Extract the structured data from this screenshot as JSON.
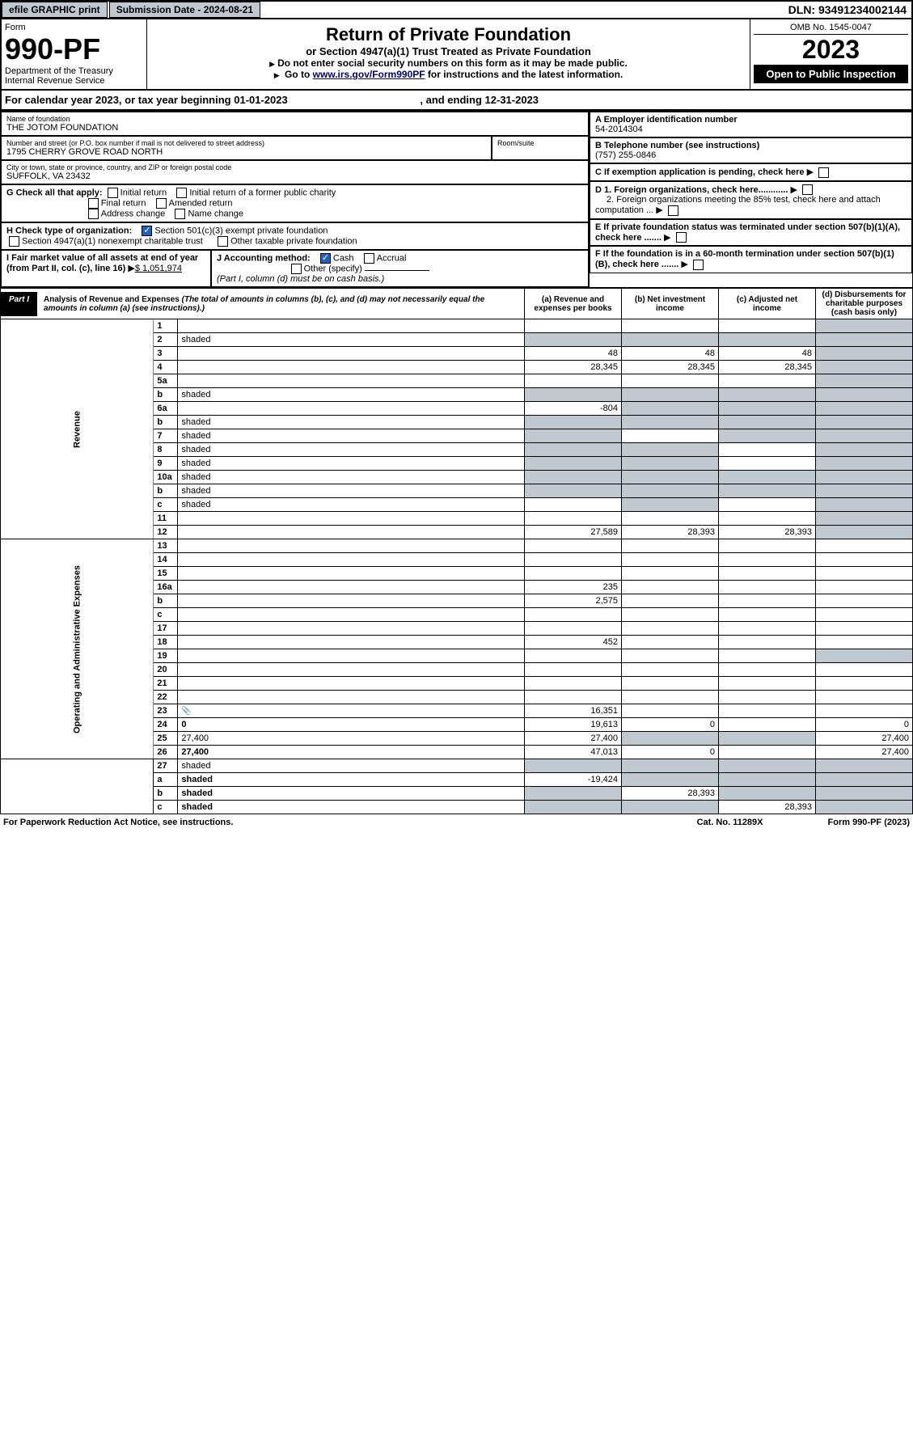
{
  "topbar": {
    "efile": "efile GRAPHIC print",
    "submission_label": "Submission Date - 2024-08-21",
    "dln": "DLN: 93491234002144"
  },
  "header": {
    "form_word": "Form",
    "form_no": "990-PF",
    "dept": "Department of the Treasury",
    "irs": "Internal Revenue Service",
    "title": "Return of Private Foundation",
    "subtitle": "or Section 4947(a)(1) Trust Treated as Private Foundation",
    "instr1": "Do not enter social security numbers on this form as it may be made public.",
    "instr2a": "Go to ",
    "instr2b": "www.irs.gov/Form990PF",
    "instr2c": " for instructions and the latest information.",
    "omb": "OMB No. 1545-0047",
    "year": "2023",
    "open": "Open to Public Inspection"
  },
  "calyear": {
    "prefix": "For calendar year 2023, or tax year beginning ",
    "begin": "01-01-2023",
    "mid": " , and ending ",
    "end": "12-31-2023"
  },
  "entity": {
    "name_label": "Name of foundation",
    "name": "THE JOTOM FOUNDATION",
    "addr_label": "Number and street (or P.O. box number if mail is not delivered to street address)",
    "addr": "1795 CHERRY GROVE ROAD NORTH",
    "room_label": "Room/suite",
    "city_label": "City or town, state or province, country, and ZIP or foreign postal code",
    "city": "SUFFOLK, VA  23432",
    "a_label": "A Employer identification number",
    "ein": "54-2014304",
    "b_label": "B Telephone number (see instructions)",
    "phone": "(757) 255-0846",
    "c_label": "C If exemption application is pending, check here",
    "d1": "D 1. Foreign organizations, check here............",
    "d2": "2. Foreign organizations meeting the 85% test, check here and attach computation ...",
    "e_label": "E  If private foundation status was terminated under section 507(b)(1)(A), check here .......",
    "f_label": "F  If the foundation is in a 60-month termination under section 507(b)(1)(B), check here .......",
    "g_label": "G Check all that apply:",
    "g_opts": {
      "initial": "Initial return",
      "initial_former": "Initial return of a former public charity",
      "final": "Final return",
      "amended": "Amended return",
      "address": "Address change",
      "name_ch": "Name change"
    },
    "h_label": "H Check type of organization:",
    "h_opts": {
      "501c3": "Section 501(c)(3) exempt private foundation",
      "4947": "Section 4947(a)(1) nonexempt charitable trust",
      "other_tax": "Other taxable private foundation"
    },
    "i_label": "I Fair market value of all assets at end of year (from Part II, col. (c), line 16)",
    "i_value": "$  1,051,974",
    "j_label": "J Accounting method:",
    "j_cash": "Cash",
    "j_accrual": "Accrual",
    "j_other": "Other (specify)",
    "j_note": "(Part I, column (d) must be on cash basis.)"
  },
  "part1": {
    "tag": "Part I",
    "title": "Analysis of Revenue and Expenses",
    "title_note": " (The total of amounts in columns (b), (c), and (d) may not necessarily equal the amounts in column (a) (see instructions).)",
    "cols": {
      "a": "(a) Revenue and expenses per books",
      "b": "(b) Net investment income",
      "c": "(c) Adjusted net income",
      "d": "(d) Disbursements for charitable purposes (cash basis only)"
    }
  },
  "sides": {
    "revenue": "Revenue",
    "expenses": "Operating and Administrative Expenses"
  },
  "rows": [
    {
      "n": "1",
      "d": "",
      "a": "",
      "b": "",
      "c": "",
      "shade_d": true
    },
    {
      "n": "2",
      "d": "shaded",
      "a": "shaded",
      "b": "shaded",
      "c": "shaded"
    },
    {
      "n": "3",
      "d": "",
      "a": "48",
      "b": "48",
      "c": "48",
      "shade_d": true
    },
    {
      "n": "4",
      "d": "",
      "a": "28,345",
      "b": "28,345",
      "c": "28,345",
      "shade_d": true
    },
    {
      "n": "5a",
      "d": "",
      "a": "",
      "b": "",
      "c": "",
      "shade_d": true
    },
    {
      "n": "b",
      "d": "shaded",
      "a": "shaded",
      "b": "shaded",
      "c": "shaded"
    },
    {
      "n": "6a",
      "d": "",
      "a": "-804",
      "b": "shaded",
      "c": "shaded",
      "shade_d": true
    },
    {
      "n": "b",
      "d": "shaded",
      "a": "shaded",
      "b": "shaded",
      "c": "shaded"
    },
    {
      "n": "7",
      "d": "shaded",
      "a": "shaded",
      "b": "",
      "c": "shaded"
    },
    {
      "n": "8",
      "d": "shaded",
      "a": "shaded",
      "b": "shaded",
      "c": ""
    },
    {
      "n": "9",
      "d": "shaded",
      "a": "shaded",
      "b": "shaded",
      "c": ""
    },
    {
      "n": "10a",
      "d": "shaded",
      "a": "shaded",
      "b": "shaded",
      "c": "shaded"
    },
    {
      "n": "b",
      "d": "shaded",
      "a": "shaded",
      "b": "shaded",
      "c": "shaded"
    },
    {
      "n": "c",
      "d": "shaded",
      "a": "",
      "b": "shaded",
      "c": ""
    },
    {
      "n": "11",
      "d": "",
      "a": "",
      "b": "",
      "c": "",
      "shade_d": true
    },
    {
      "n": "12",
      "d": "",
      "bold": true,
      "a": "27,589",
      "b": "28,393",
      "c": "28,393",
      "shade_d": true
    }
  ],
  "exp_rows": [
    {
      "n": "13",
      "d": "",
      "a": "",
      "b": "",
      "c": ""
    },
    {
      "n": "14",
      "d": "",
      "a": "",
      "b": "",
      "c": ""
    },
    {
      "n": "15",
      "d": "",
      "a": "",
      "b": "",
      "c": ""
    },
    {
      "n": "16a",
      "d": "",
      "a": "235",
      "b": "",
      "c": ""
    },
    {
      "n": "b",
      "d": "",
      "a": "2,575",
      "b": "",
      "c": ""
    },
    {
      "n": "c",
      "d": "",
      "a": "",
      "b": "",
      "c": ""
    },
    {
      "n": "17",
      "d": "",
      "a": "",
      "b": "",
      "c": ""
    },
    {
      "n": "18",
      "d": "",
      "a": "452",
      "b": "",
      "c": ""
    },
    {
      "n": "19",
      "d": "",
      "a": "",
      "b": "",
      "c": "",
      "shade_d": true
    },
    {
      "n": "20",
      "d": "",
      "a": "",
      "b": "",
      "c": ""
    },
    {
      "n": "21",
      "d": "",
      "a": "",
      "b": "",
      "c": ""
    },
    {
      "n": "22",
      "d": "",
      "a": "",
      "b": "",
      "c": ""
    },
    {
      "n": "23",
      "d": "",
      "a": "16,351",
      "b": "",
      "c": "",
      "icon": true
    },
    {
      "n": "24",
      "d": "0",
      "bold": true,
      "a": "19,613",
      "b": "0",
      "c": ""
    },
    {
      "n": "25",
      "d": "27,400",
      "a": "27,400",
      "b": "shaded",
      "c": "shaded"
    },
    {
      "n": "26",
      "d": "27,400",
      "bold": true,
      "a": "47,013",
      "b": "0",
      "c": ""
    }
  ],
  "sub_rows": [
    {
      "n": "27",
      "d": "shaded",
      "a": "shaded",
      "b": "shaded",
      "c": "shaded"
    },
    {
      "n": "a",
      "d": "shaded",
      "bold": true,
      "a": "-19,424",
      "b": "shaded",
      "c": "shaded"
    },
    {
      "n": "b",
      "d": "shaded",
      "bold": true,
      "a": "shaded",
      "b": "28,393",
      "c": "shaded"
    },
    {
      "n": "c",
      "d": "shaded",
      "bold": true,
      "a": "shaded",
      "b": "shaded",
      "c": "28,393"
    }
  ],
  "footer": {
    "left": "For Paperwork Reduction Act Notice, see instructions.",
    "mid": "Cat. No. 11289X",
    "right": "Form 990-PF (2023)"
  },
  "colors": {
    "shaded": "#c0c8d0",
    "black": "#000000",
    "link": "#000066"
  }
}
